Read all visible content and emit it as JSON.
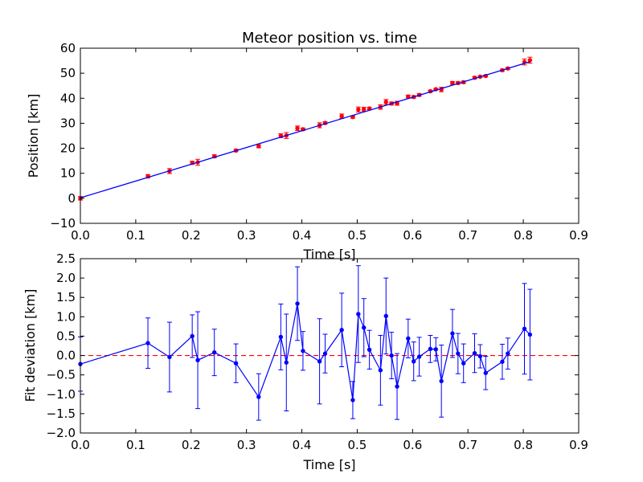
{
  "chart_data": [
    {
      "type": "scatter",
      "title": "Meteor position vs. time",
      "xlabel": "Time [s]",
      "ylabel": "Position [km]",
      "xlim": [
        0,
        0.9
      ],
      "ylim": [
        -10,
        60
      ],
      "xticks": [
        "0.0",
        "0.1",
        "0.2",
        "0.3",
        "0.4",
        "0.5",
        "0.6",
        "0.7",
        "0.8",
        "0.9"
      ],
      "yticks": [
        "−10",
        "0",
        "10",
        "20",
        "30",
        "40",
        "50",
        "60"
      ],
      "grid": false,
      "series": [
        {
          "kind": "errorbar-points",
          "color": "#ff0000",
          "x": [
            0.0,
            0.122,
            0.161,
            0.202,
            0.212,
            0.242,
            0.281,
            0.322,
            0.362,
            0.372,
            0.392,
            0.402,
            0.432,
            0.442,
            0.472,
            0.492,
            0.502,
            0.512,
            0.522,
            0.542,
            0.552,
            0.562,
            0.572,
            0.592,
            0.602,
            0.612,
            0.632,
            0.642,
            0.652,
            0.672,
            0.682,
            0.692,
            0.712,
            0.722,
            0.732,
            0.762,
            0.772,
            0.802,
            0.812
          ],
          "y": [
            0.0,
            8.8,
            10.9,
            14.2,
            14.4,
            16.8,
            19.1,
            20.8,
            25.0,
            25.1,
            28.0,
            27.6,
            29.2,
            30.1,
            32.8,
            32.5,
            35.5,
            35.6,
            35.9,
            36.5,
            38.5,
            37.9,
            38.0,
            40.7,
            40.5,
            41.3,
            42.8,
            43.6,
            43.5,
            46.1,
            46.1,
            46.4,
            48.2,
            48.6,
            48.9,
            51.2,
            51.9,
            54.5,
            55.2
          ],
          "yerr": [
            0.7,
            0.7,
            1.0,
            0.6,
            1.2,
            0.6,
            0.5,
            0.6,
            0.8,
            1.2,
            0.9,
            0.5,
            1.0,
            0.5,
            0.9,
            0.5,
            1.0,
            0.8,
            0.5,
            0.9,
            1.0,
            0.6,
            0.8,
            0.5,
            0.5,
            0.5,
            0.4,
            0.3,
            0.9,
            0.6,
            0.5,
            0.5,
            0.5,
            0.3,
            0.4,
            0.4,
            0.4,
            1.2,
            1.2
          ]
        },
        {
          "kind": "fit-line",
          "color": "#0000ff",
          "x": [
            0.0,
            0.812
          ],
          "y": [
            0.2,
            54.6
          ]
        }
      ]
    },
    {
      "type": "line",
      "xlabel": "Time [s]",
      "ylabel": "Fit deviation [km]",
      "xlim": [
        0,
        0.9
      ],
      "ylim": [
        -2.0,
        2.5
      ],
      "xticks": [
        "0.0",
        "0.1",
        "0.2",
        "0.3",
        "0.4",
        "0.5",
        "0.6",
        "0.7",
        "0.8",
        "0.9"
      ],
      "yticks": [
        "−2.0",
        "−1.5",
        "−1.0",
        "−0.5",
        "0.0",
        "0.5",
        "1.0",
        "1.5",
        "2.0",
        "2.5"
      ],
      "grid": false,
      "reference_line": {
        "y": 0,
        "color": "#ff0000",
        "style": "dashed"
      },
      "series": [
        {
          "kind": "errorbar-line",
          "color": "#0000ff",
          "x": [
            0.0,
            0.122,
            0.161,
            0.202,
            0.212,
            0.242,
            0.281,
            0.322,
            0.362,
            0.372,
            0.392,
            0.402,
            0.432,
            0.442,
            0.472,
            0.492,
            0.502,
            0.512,
            0.522,
            0.542,
            0.552,
            0.562,
            0.572,
            0.592,
            0.602,
            0.612,
            0.632,
            0.642,
            0.652,
            0.672,
            0.682,
            0.692,
            0.712,
            0.722,
            0.732,
            0.762,
            0.772,
            0.802,
            0.812
          ],
          "y": [
            -0.22,
            0.32,
            -0.04,
            0.5,
            -0.12,
            0.08,
            -0.2,
            -1.07,
            0.48,
            -0.18,
            1.34,
            0.12,
            -0.15,
            0.05,
            0.66,
            -1.15,
            1.07,
            0.72,
            0.15,
            -0.38,
            1.02,
            0.0,
            -0.8,
            0.44,
            -0.15,
            -0.03,
            0.17,
            0.16,
            -0.66,
            0.57,
            0.05,
            -0.2,
            0.06,
            -0.02,
            -0.45,
            -0.16,
            0.05,
            0.69,
            0.54
          ],
          "yerr": [
            0.7,
            0.65,
            0.9,
            0.55,
            1.25,
            0.6,
            0.5,
            0.6,
            0.85,
            1.25,
            0.95,
            0.5,
            1.1,
            0.5,
            0.95,
            0.48,
            1.25,
            0.75,
            0.5,
            0.9,
            0.98,
            0.6,
            0.85,
            0.5,
            0.5,
            0.5,
            0.35,
            0.3,
            0.93,
            0.62,
            0.52,
            0.5,
            0.5,
            0.3,
            0.43,
            0.45,
            0.4,
            1.17,
            1.17
          ]
        }
      ]
    }
  ]
}
